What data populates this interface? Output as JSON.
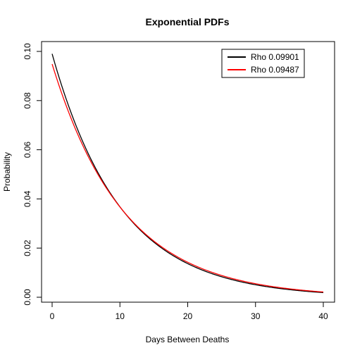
{
  "chart_data": {
    "type": "line",
    "title": "Exponential PDFs",
    "xlabel": "Days Between Deaths",
    "ylabel": "Probability",
    "xlim": [
      0,
      40
    ],
    "ylim": [
      0,
      0.1
    ],
    "x_ticks": [
      0,
      10,
      20,
      30,
      40
    ],
    "x_tick_labels": [
      "0",
      "10",
      "20",
      "30",
      "40"
    ],
    "y_ticks": [
      0,
      0.02,
      0.04,
      0.06,
      0.08,
      0.1
    ],
    "y_tick_labels": [
      "0.00",
      "0.02",
      "0.04",
      "0.06",
      "0.08",
      "0.10"
    ],
    "grid": false,
    "legend_position": "top-right",
    "series": [
      {
        "name": "Rho 0.09901",
        "rate": 0.09901,
        "color": "#000000",
        "x": [
          0,
          5,
          10,
          15,
          20,
          25,
          30,
          35,
          40
        ],
        "values": [
          0.099,
          0.0604,
          0.0368,
          0.0225,
          0.0137,
          0.0083,
          0.0051,
          0.0031,
          0.0019
        ]
      },
      {
        "name": "Rho 0.09487",
        "rate": 0.09487,
        "color": "#ff0000",
        "x": [
          0,
          5,
          10,
          15,
          20,
          25,
          30,
          35,
          40
        ],
        "values": [
          0.0949,
          0.0592,
          0.0368,
          0.0229,
          0.0143,
          0.0089,
          0.0055,
          0.0034,
          0.0021
        ]
      }
    ]
  }
}
